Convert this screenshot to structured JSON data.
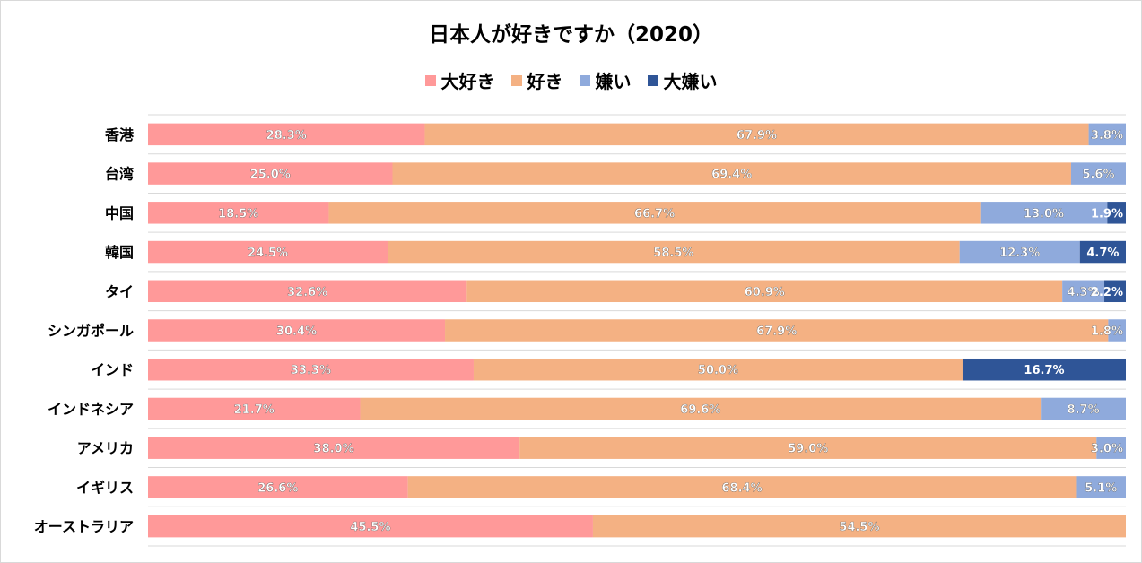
{
  "chart_data": {
    "type": "bar",
    "orientation": "horizontal",
    "stacked": true,
    "normalized": true,
    "title": "日本人が好きですか（2020）",
    "xlabel": "",
    "ylabel": "",
    "xlim": [
      0,
      100
    ],
    "legend_position": "top",
    "grid": true,
    "categories": [
      "香港",
      "台湾",
      "中国",
      "韓国",
      "タイ",
      "シンガポール",
      "インド",
      "インドネシア",
      "アメリカ",
      "イギリス",
      "オーストラリア"
    ],
    "series": [
      {
        "name": "大好き",
        "color": "#ff9999",
        "values": [
          28.3,
          25.0,
          18.5,
          24.5,
          32.6,
          30.4,
          33.3,
          21.7,
          38.0,
          26.6,
          45.5
        ],
        "labels": [
          "28.3%",
          "25.0%",
          "18.5%",
          "24.5%",
          "32.6%",
          "30.4%",
          "33.3%",
          "21.7%",
          "38.0%",
          "26.6%",
          "45.5%"
        ]
      },
      {
        "name": "好き",
        "color": "#f4b183",
        "values": [
          67.9,
          69.4,
          66.7,
          58.5,
          60.9,
          67.9,
          50.0,
          69.6,
          59.0,
          68.4,
          54.5
        ],
        "labels": [
          "67.9%",
          "69.4%",
          "66.7%",
          "58.5%",
          "60.9%",
          "67.9%",
          "50.0%",
          "69.6%",
          "59.0%",
          "68.4%",
          "54.5%"
        ]
      },
      {
        "name": "嫌い",
        "color": "#8faadc",
        "values": [
          3.8,
          5.6,
          13.0,
          12.3,
          4.3,
          1.8,
          0,
          8.7,
          3.0,
          5.1,
          0
        ],
        "labels": [
          "3.8%",
          "5.6%",
          "13.0%",
          "12.3%",
          "4.3%",
          "1.8%",
          "",
          "8.7%",
          "3.0%",
          "5.1%",
          ""
        ]
      },
      {
        "name": "大嫌い",
        "color": "#2f5597",
        "values": [
          0,
          0,
          1.9,
          4.7,
          2.2,
          0,
          16.7,
          0,
          0,
          0,
          0
        ],
        "labels": [
          "",
          "",
          "1.9%",
          "4.7%",
          "2.2%",
          "",
          "16.7%",
          "",
          "",
          "",
          ""
        ]
      }
    ]
  }
}
